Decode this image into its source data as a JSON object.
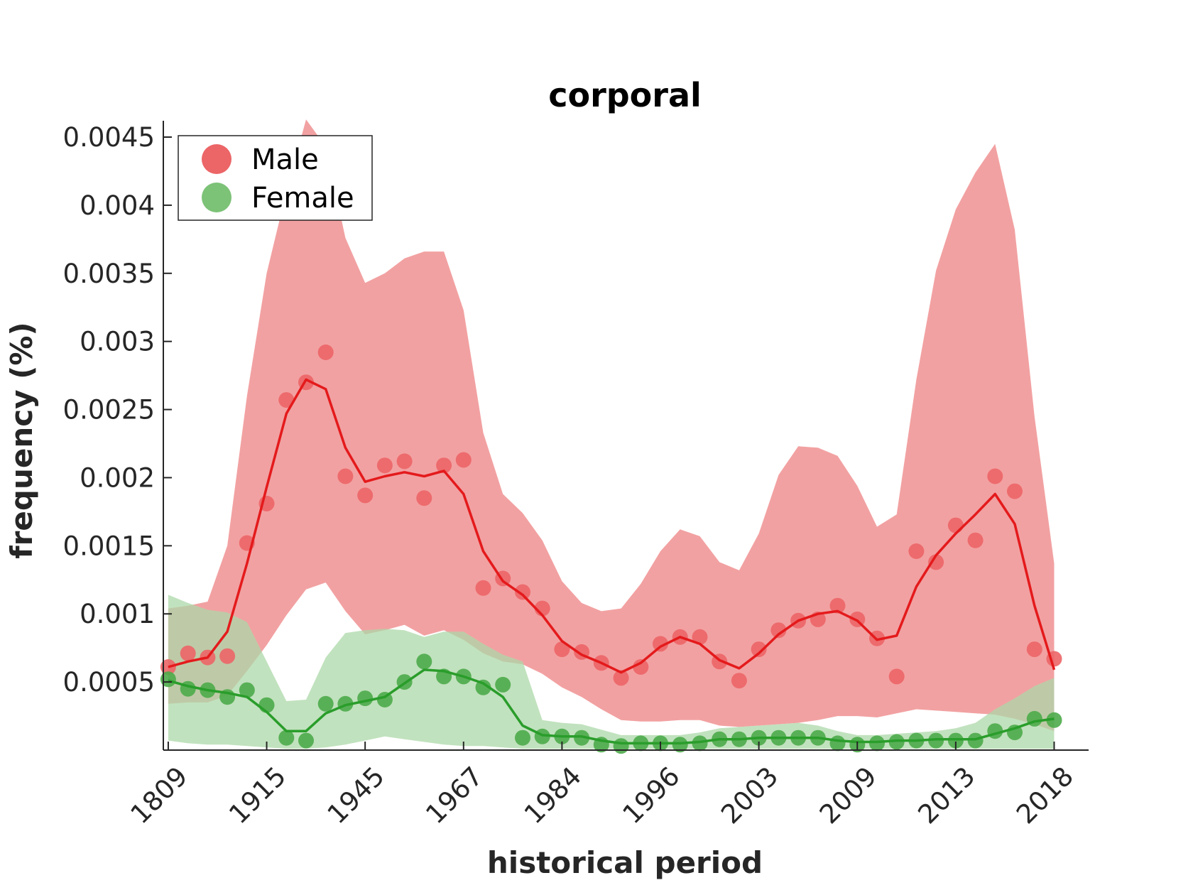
{
  "chart_data": {
    "type": "line",
    "title": "corporal",
    "xlabel": "historical period",
    "ylabel": "frequency (%)",
    "ylim": [
      0,
      0.00462
    ],
    "yticks": [
      0.0005,
      0.001,
      0.0015,
      0.002,
      0.0025,
      0.003,
      0.0035,
      0.004,
      0.0045
    ],
    "ytick_labels": [
      "0.0005",
      "0.001",
      "0.0015",
      "0.002",
      "0.0025",
      "0.003",
      "0.0035",
      "0.004",
      "0.0045"
    ],
    "xlim": [
      -0.25,
      46.75
    ],
    "xticks": [
      0,
      5,
      10,
      15,
      20,
      25,
      30,
      35,
      40,
      45
    ],
    "xtick_labels": [
      "1809",
      "1915",
      "1945",
      "1967",
      "1984",
      "1996",
      "2003",
      "2009",
      "2013",
      "2018"
    ],
    "legend_position": "top-left",
    "grid": false,
    "series": [
      {
        "name": "Male",
        "color": "#e41a1c",
        "fill_color": "#f2a1a2",
        "marker_color": "#ec6567",
        "points": [
          0.00061,
          0.00071,
          0.00068,
          0.00069,
          0.00152,
          0.00181,
          0.00257,
          0.0027,
          0.00292,
          0.00201,
          0.00187,
          0.00209,
          0.00212,
          0.00185,
          0.00209,
          0.00213,
          0.00119,
          0.00126,
          0.00116,
          0.00104,
          0.00074,
          0.00072,
          0.00064,
          0.00053,
          0.00061,
          0.00078,
          0.00083,
          0.00083,
          0.00065,
          0.00051,
          0.00074,
          0.00088,
          0.00095,
          0.00096,
          0.00106,
          0.00096,
          0.00082,
          0.00054,
          0.00146,
          0.00138,
          0.00165,
          0.00154,
          0.00201,
          0.0019,
          0.00074,
          0.00067
        ],
        "trend": [
          0.00061,
          0.00065,
          0.00068,
          0.00087,
          0.00137,
          0.00193,
          0.00247,
          0.00272,
          0.00265,
          0.00222,
          0.00197,
          0.00201,
          0.00204,
          0.00201,
          0.00205,
          0.00188,
          0.00146,
          0.00124,
          0.00114,
          0.00099,
          0.0008,
          0.0007,
          0.00064,
          0.00057,
          0.00064,
          0.00076,
          0.00083,
          0.00078,
          0.00066,
          0.0006,
          0.00071,
          0.00085,
          0.00095,
          0.001,
          0.00102,
          0.00095,
          0.00081,
          0.00084,
          0.0012,
          0.00143,
          0.00159,
          0.00173,
          0.00188,
          0.00166,
          0.00106,
          0.00059
        ],
        "band_upper": [
          0.00104,
          0.00106,
          0.00109,
          0.0015,
          0.0026,
          0.0035,
          0.0041,
          0.00463,
          0.00443,
          0.00376,
          0.00343,
          0.0035,
          0.00361,
          0.00366,
          0.00366,
          0.00323,
          0.00233,
          0.00188,
          0.00174,
          0.00154,
          0.00124,
          0.00108,
          0.00102,
          0.00104,
          0.00122,
          0.00146,
          0.00162,
          0.00157,
          0.00138,
          0.00132,
          0.00159,
          0.00202,
          0.00223,
          0.00222,
          0.00216,
          0.00194,
          0.00164,
          0.00173,
          0.00272,
          0.00352,
          0.00397,
          0.00424,
          0.00445,
          0.00382,
          0.00245,
          0.00137
        ],
        "band_lower": [
          0.00034,
          0.00035,
          0.00035,
          0.0004,
          0.00058,
          0.00077,
          0.00099,
          0.00118,
          0.00123,
          0.00102,
          0.00085,
          0.00088,
          0.00092,
          0.00084,
          0.00088,
          0.00081,
          0.00071,
          0.00065,
          0.00063,
          0.00056,
          0.00046,
          0.00039,
          0.0003,
          0.00022,
          0.00021,
          0.00021,
          0.00022,
          0.00022,
          0.00018,
          0.00017,
          0.00018,
          0.00019,
          0.0002,
          0.00022,
          0.00025,
          0.00025,
          0.00024,
          0.00027,
          0.0003,
          0.00029,
          0.00028,
          0.00027,
          0.00026,
          0.00023,
          0.00019,
          0.00014
        ]
      },
      {
        "name": "Female",
        "color": "#2a9d2b",
        "fill_color": "#acd8a8",
        "marker_color": "#4dab4a",
        "points": [
          0.00052,
          0.00045,
          0.00044,
          0.00039,
          0.00044,
          0.00033,
          9e-05,
          7e-05,
          0.00034,
          0.00034,
          0.00038,
          0.00037,
          0.0005,
          0.00065,
          0.00054,
          0.00054,
          0.00046,
          0.00048,
          9e-05,
          0.0001,
          0.0001,
          9e-05,
          4e-05,
          3e-05,
          5e-05,
          5e-05,
          4e-05,
          5e-05,
          8e-05,
          8e-05,
          9e-05,
          9e-05,
          9e-05,
          9e-05,
          5e-05,
          4e-05,
          5e-05,
          6e-05,
          7e-05,
          7e-05,
          7e-05,
          7e-05,
          0.00014,
          0.00013,
          0.00023,
          0.00022
        ],
        "trend": [
          0.00051,
          0.00047,
          0.00044,
          0.00042,
          0.00039,
          0.00028,
          0.00014,
          0.00014,
          0.00027,
          0.00033,
          0.00036,
          0.00039,
          0.00049,
          0.00059,
          0.00058,
          0.00054,
          0.00049,
          0.00039,
          0.00018,
          0.00011,
          0.0001,
          0.0001,
          7e-05,
          5e-05,
          5e-05,
          5e-05,
          5e-05,
          6e-05,
          8e-05,
          8e-05,
          9e-05,
          9e-05,
          9e-05,
          9e-05,
          7e-05,
          6e-05,
          6e-05,
          7e-05,
          7e-05,
          8e-05,
          8e-05,
          8e-05,
          0.00012,
          0.00016,
          0.00021,
          0.00023
        ],
        "band_upper": [
          0.00114,
          0.00108,
          0.00103,
          0.00101,
          0.00094,
          0.00065,
          0.00036,
          0.00037,
          0.00068,
          0.00086,
          0.00088,
          0.00089,
          0.00088,
          0.00083,
          0.00087,
          0.00087,
          0.00078,
          0.0007,
          0.00065,
          0.00022,
          0.0002,
          0.00019,
          0.00015,
          0.00011,
          0.00011,
          0.00011,
          0.00011,
          0.00013,
          0.00016,
          0.00017,
          0.00018,
          0.00019,
          0.0002,
          0.00018,
          0.00014,
          0.00011,
          0.00011,
          0.00012,
          0.00013,
          0.00014,
          0.00016,
          0.0002,
          0.0003,
          0.00038,
          0.00047,
          0.00053
        ],
        "band_lower": [
          7e-05,
          5e-05,
          4e-05,
          4e-05,
          3e-05,
          2e-05,
          1e-05,
          1e-05,
          2e-05,
          4e-05,
          7e-05,
          0.0001,
          8e-05,
          6e-05,
          4e-05,
          3e-05,
          3e-05,
          2e-05,
          1e-05,
          1e-05,
          1e-05,
          1e-05,
          1e-05,
          1e-05,
          1e-05,
          1e-05,
          1e-05,
          1e-05,
          1e-05,
          1e-05,
          1e-05,
          1e-05,
          1e-05,
          1e-05,
          1e-05,
          1e-05,
          1e-05,
          1e-05,
          1e-05,
          1e-05,
          1e-05,
          1e-05,
          1e-05,
          1e-05,
          1e-05,
          1e-05
        ]
      }
    ]
  }
}
